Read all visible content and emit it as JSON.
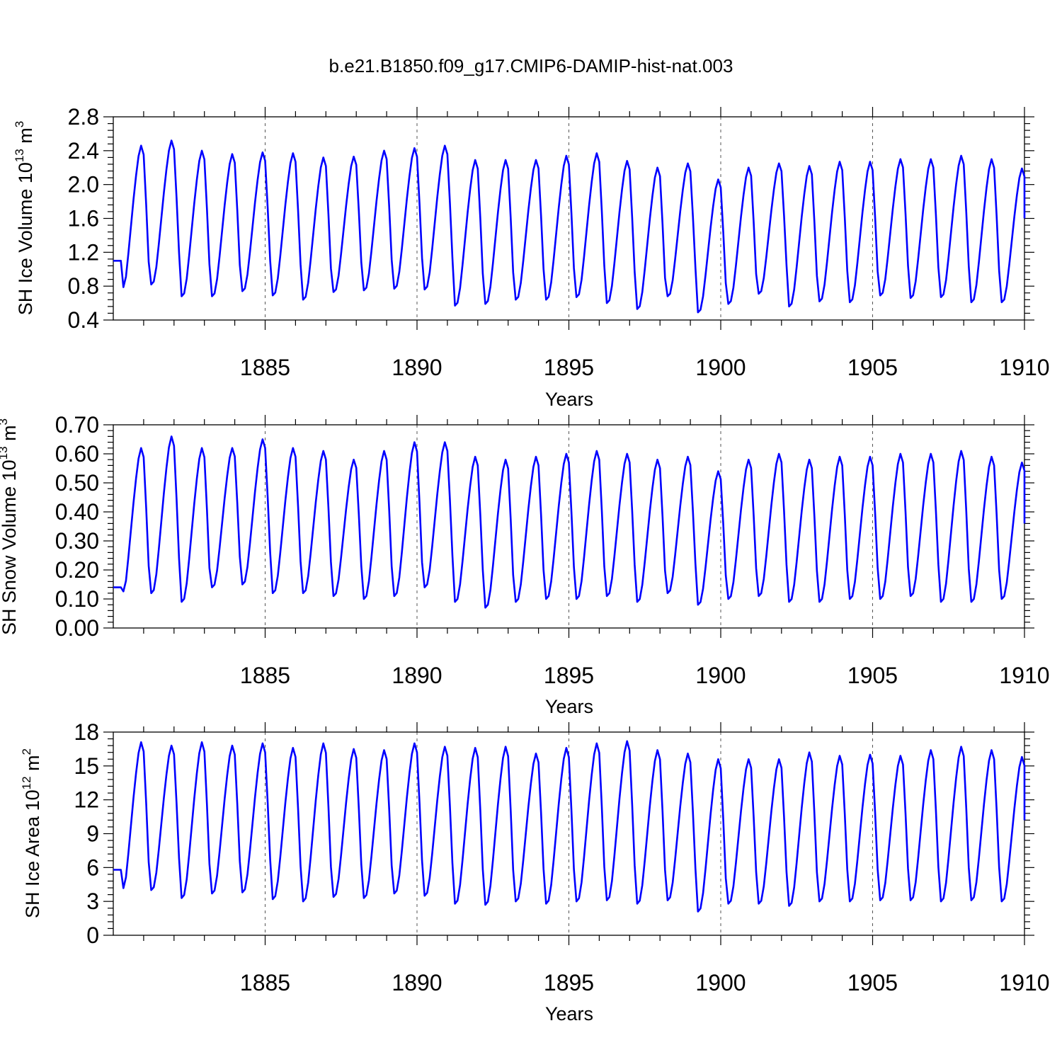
{
  "figure": {
    "title": "b.e21.B1850.f09_g17.CMIP6-DAMIP-hist-nat.003",
    "line_color": "#0000ff"
  },
  "chart_data": [
    {
      "type": "line",
      "xlabel": "Years",
      "ylabel": {
        "main": "SH Ice Volume 10",
        "sup": "13",
        "unit": " m",
        "unit_sup": "3"
      },
      "xlim": [
        1880,
        1910
      ],
      "ylim": [
        0.4,
        2.8
      ],
      "x_ticks": [
        1885,
        1890,
        1895,
        1900,
        1905,
        1910
      ],
      "x_tick_labels": [
        "1885",
        "1890",
        "1895",
        "1900",
        "1905",
        "1910"
      ],
      "y_ticks": [
        0.4,
        0.8,
        1.2,
        1.6,
        2.0,
        2.4,
        2.8
      ],
      "y_tick_labels": [
        "0.4",
        "0.8",
        "1.2",
        "1.6",
        "2.0",
        "2.4",
        "2.8"
      ],
      "vertical_grid": true,
      "series": [
        {
          "x_start": 1880.0,
          "x_step": 0.083333,
          "annual_min": [
            0.7,
            0.82,
            0.68,
            0.68,
            0.74,
            0.69,
            0.64,
            0.73,
            0.75,
            0.77,
            0.76,
            0.57,
            0.59,
            0.64,
            0.64,
            0.67,
            0.6,
            0.53,
            0.68,
            0.49,
            0.59,
            0.71,
            0.56,
            0.62,
            0.61,
            0.69,
            0.66,
            0.67,
            0.61,
            0.61
          ],
          "annual_max": [
            2.46,
            2.52,
            2.4,
            2.36,
            2.38,
            2.37,
            2.32,
            2.33,
            2.4,
            2.43,
            2.46,
            2.29,
            2.29,
            2.29,
            2.34,
            2.37,
            2.28,
            2.2,
            2.25,
            2.06,
            2.2,
            2.25,
            2.22,
            2.27,
            2.27,
            2.3,
            2.3,
            2.34,
            2.3,
            2.19
          ],
          "start_value": 1.1,
          "end_value": 1.6
        }
      ]
    },
    {
      "type": "line",
      "xlabel": "Years",
      "ylabel": {
        "main": "SH Snow Volume 10",
        "sup": "13",
        "unit": " m",
        "unit_sup": "3"
      },
      "xlim": [
        1880,
        1910
      ],
      "ylim": [
        0.0,
        0.7
      ],
      "x_ticks": [
        1885,
        1890,
        1895,
        1900,
        1905,
        1910
      ],
      "x_tick_labels": [
        "1885",
        "1890",
        "1895",
        "1900",
        "1905",
        "1910"
      ],
      "y_ticks": [
        0.0,
        0.1,
        0.2,
        0.3,
        0.4,
        0.5,
        0.6,
        0.7
      ],
      "y_tick_labels": [
        "0.00",
        "0.10",
        "0.20",
        "0.30",
        "0.40",
        "0.50",
        "0.60",
        "0.70"
      ],
      "vertical_grid": true,
      "series": [
        {
          "x_start": 1880.0,
          "x_step": 0.083333,
          "annual_min": [
            0.1,
            0.12,
            0.09,
            0.14,
            0.15,
            0.12,
            0.12,
            0.11,
            0.1,
            0.11,
            0.14,
            0.09,
            0.07,
            0.09,
            0.1,
            0.1,
            0.11,
            0.09,
            0.12,
            0.08,
            0.1,
            0.11,
            0.09,
            0.09,
            0.1,
            0.1,
            0.11,
            0.09,
            0.09,
            0.1
          ],
          "annual_max": [
            0.62,
            0.66,
            0.62,
            0.62,
            0.65,
            0.62,
            0.61,
            0.58,
            0.61,
            0.64,
            0.64,
            0.59,
            0.58,
            0.59,
            0.6,
            0.61,
            0.6,
            0.58,
            0.59,
            0.54,
            0.58,
            0.6,
            0.58,
            0.59,
            0.59,
            0.6,
            0.6,
            0.61,
            0.59,
            0.57
          ],
          "start_value": 0.14,
          "end_value": 0.36
        }
      ]
    },
    {
      "type": "line",
      "xlabel": "Years",
      "ylabel": {
        "main": "SH Ice Area 10",
        "sup": "12",
        "unit": " m",
        "unit_sup": "2"
      },
      "xlim": [
        1880,
        1910
      ],
      "ylim": [
        0,
        18
      ],
      "x_ticks": [
        1885,
        1890,
        1895,
        1900,
        1905,
        1910
      ],
      "x_tick_labels": [
        "1885",
        "1890",
        "1895",
        "1900",
        "1905",
        "1910"
      ],
      "y_ticks": [
        0,
        3,
        6,
        9,
        12,
        15,
        18
      ],
      "y_tick_labels": [
        "0",
        "3",
        "6",
        "9",
        "12",
        "15",
        "18"
      ],
      "vertical_grid": true,
      "series": [
        {
          "x_start": 1880.0,
          "x_step": 0.083333,
          "annual_min": [
            3.5,
            4.0,
            3.3,
            3.7,
            3.8,
            3.2,
            3.0,
            3.4,
            3.3,
            3.7,
            3.5,
            2.8,
            2.7,
            3.0,
            2.8,
            3.0,
            3.1,
            2.8,
            3.1,
            2.1,
            2.8,
            2.8,
            2.6,
            3.0,
            3.0,
            3.1,
            3.1,
            3.0,
            3.1,
            3.0
          ],
          "annual_max": [
            17.1,
            16.8,
            17.1,
            16.8,
            17.0,
            16.6,
            17.0,
            16.5,
            16.4,
            17.0,
            16.7,
            16.6,
            16.7,
            16.1,
            16.6,
            17.0,
            17.2,
            16.4,
            16.1,
            15.6,
            15.6,
            15.6,
            16.2,
            15.9,
            16.0,
            15.9,
            16.4,
            16.7,
            16.4,
            15.8
          ],
          "start_value": 5.8,
          "end_value": 10.2
        }
      ]
    }
  ]
}
